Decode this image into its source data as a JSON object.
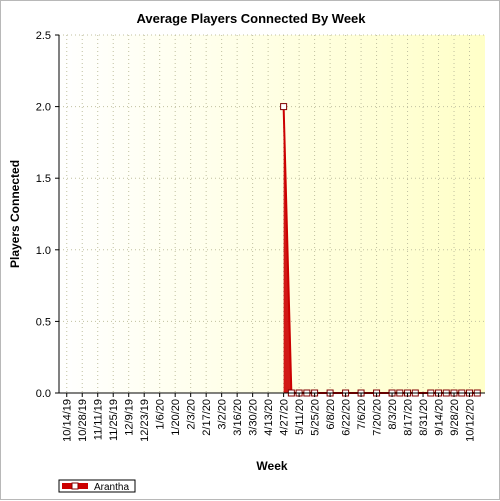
{
  "chart_data": {
    "type": "line",
    "title": "Average Players Connected By Week",
    "xlabel": "Week",
    "ylabel": "Players Connected",
    "ylim": [
      0,
      2.5
    ],
    "yticks": [
      "0.0",
      "0.5",
      "1.0",
      "1.5",
      "2.0",
      "2.5"
    ],
    "grid": true,
    "legend_position": "bottom-left",
    "colors": {
      "series": "#cc0000",
      "marker_fill": "#ffffff",
      "plot_bg_left": "#ffffff",
      "plot_bg_right": "#ffffc8",
      "grid": "#c0c0a0"
    },
    "x_ticks": [
      "10/14/19",
      "10/28/19",
      "11/11/19",
      "11/25/19",
      "12/9/19",
      "12/23/19",
      "1/6/20",
      "1/20/20",
      "2/3/20",
      "2/17/20",
      "3/2/20",
      "3/16/20",
      "3/30/20",
      "4/13/20",
      "4/27/20",
      "5/11/20",
      "5/25/20",
      "6/8/20",
      "6/22/20",
      "7/6/20",
      "7/20/20",
      "8/3/20",
      "8/17/20",
      "8/31/20",
      "9/14/20",
      "9/28/20",
      "10/12/20"
    ],
    "series": [
      {
        "name": "Arantha",
        "points": [
          [
            "4/27/20",
            2.0
          ],
          [
            "5/4/20",
            0.0
          ],
          [
            "5/11/20",
            0.0
          ],
          [
            "5/18/20",
            0.0
          ],
          [
            "5/25/20",
            0.0
          ],
          [
            "6/8/20",
            0.0
          ],
          [
            "6/22/20",
            0.0
          ],
          [
            "7/6/20",
            0.0
          ],
          [
            "7/20/20",
            0.0
          ],
          [
            "8/3/20",
            0.0
          ],
          [
            "8/10/20",
            0.0
          ],
          [
            "8/17/20",
            0.0
          ],
          [
            "8/24/20",
            0.0
          ],
          [
            "9/7/20",
            0.0
          ],
          [
            "9/14/20",
            0.0
          ],
          [
            "9/21/20",
            0.0
          ],
          [
            "9/28/20",
            0.0
          ],
          [
            "10/5/20",
            0.0
          ],
          [
            "10/12/20",
            0.0
          ],
          [
            "10/19/20",
            0.0
          ]
        ]
      }
    ]
  }
}
